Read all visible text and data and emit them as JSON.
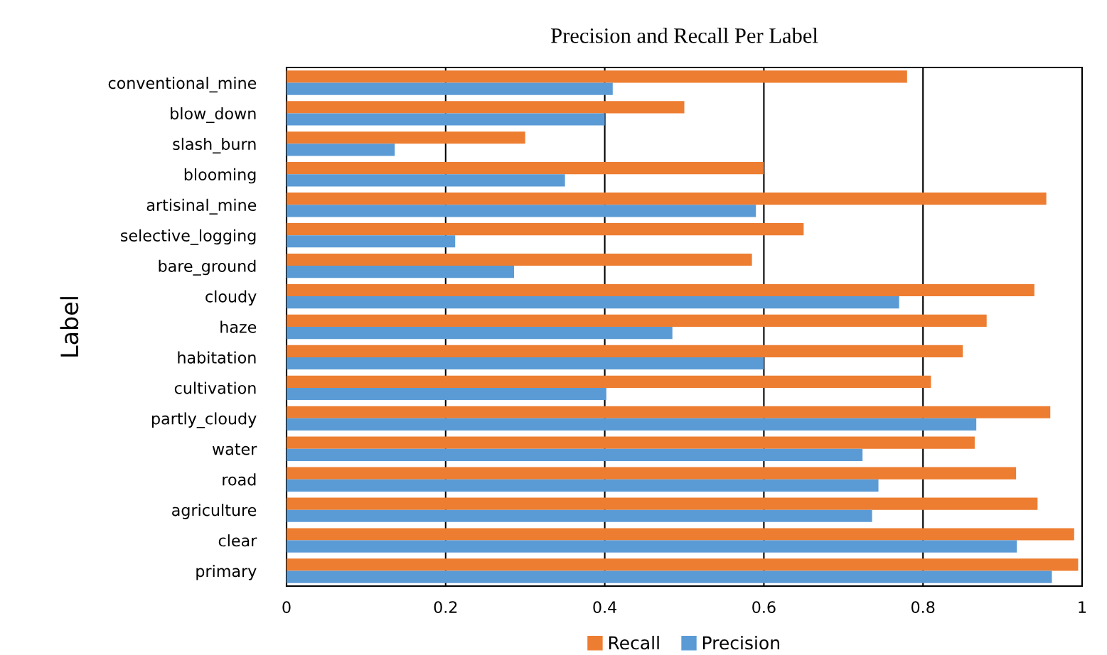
{
  "chart_data": {
    "type": "bar",
    "orientation": "horizontal",
    "title": "Precision and Recall Per Label",
    "ylabel": "Label",
    "categories": [
      "conventional_mine",
      "blow_down",
      "slash_burn",
      "blooming",
      "artisinal_mine",
      "selective_logging",
      "bare_ground",
      "cloudy",
      "haze",
      "habitation",
      "cultivation",
      "partly_cloudy",
      "water",
      "road",
      "agriculture",
      "clear",
      "primary"
    ],
    "series": [
      {
        "name": "Recall",
        "color": "#ed7d31",
        "values": [
          0.78,
          0.5,
          0.3,
          0.6,
          0.955,
          0.65,
          0.585,
          0.94,
          0.88,
          0.85,
          0.81,
          0.96,
          0.865,
          0.917,
          0.944,
          0.99,
          0.995
        ]
      },
      {
        "name": "Precision",
        "color": "#5b9bd5",
        "values": [
          0.41,
          0.4,
          0.136,
          0.35,
          0.59,
          0.212,
          0.286,
          0.77,
          0.485,
          0.6,
          0.402,
          0.867,
          0.724,
          0.744,
          0.736,
          0.918,
          0.962
        ]
      }
    ],
    "xlim": [
      0,
      1
    ],
    "xticks": [
      0,
      0.2,
      0.4,
      0.6,
      0.8,
      1
    ],
    "grid": "x",
    "legend": "bottom"
  }
}
